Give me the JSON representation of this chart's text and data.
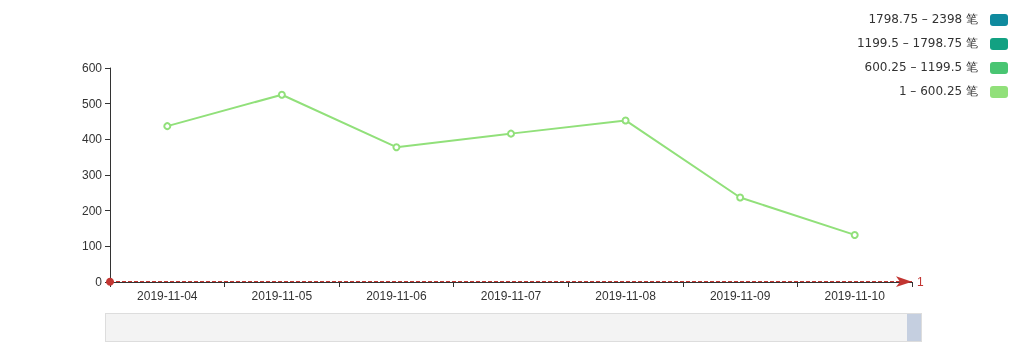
{
  "chart_data": {
    "type": "line",
    "categories": [
      "2019-11-04",
      "2019-11-05",
      "2019-11-06",
      "2019-11-07",
      "2019-11-08",
      "2019-11-09",
      "2019-11-10"
    ],
    "series": [
      {
        "color": "#91e07a",
        "values": [
          437,
          525,
          378,
          416,
          453,
          237,
          132
        ]
      }
    ],
    "ylim": [
      0,
      600
    ],
    "yticks": [
      0,
      100,
      200,
      300,
      400,
      500,
      600
    ],
    "marker": "circle",
    "grid": false,
    "ref_lines": [
      {
        "axis": "y",
        "value": 1,
        "label": "1",
        "color": "#c23531",
        "line_style": "dashed"
      }
    ],
    "annotations": [
      "1798.75 – 2398 笔",
      "1199.5 – 1798.75 笔",
      "600.25 – 1199.5 笔",
      "1 – 600.25 笔"
    ]
  }
}
